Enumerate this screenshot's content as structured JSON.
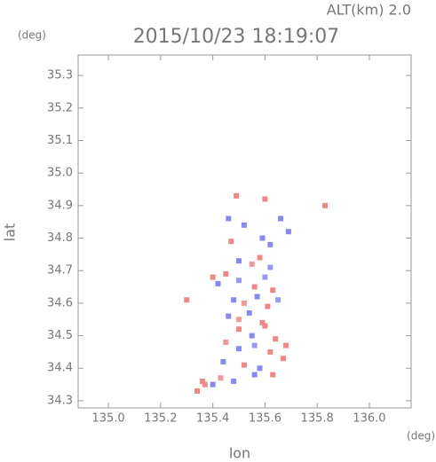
{
  "chart_data": {
    "type": "scatter",
    "title": "2015/10/23 18:19:07",
    "altitude_label": "ALT(km) 2.0",
    "y_unit": "(deg)",
    "x_unit": "(deg)",
    "xlabel": "lon",
    "ylabel": "lat",
    "xlim": [
      134.884,
      136.16
    ],
    "ylim": [
      34.278,
      35.363
    ],
    "xticks": [
      {
        "value": 135.0,
        "label": "135.0"
      },
      135.2,
      135.4,
      135.6,
      135.8,
      {
        "value": 136.0,
        "label": "136.0"
      }
    ],
    "yticks": [
      34.3,
      34.4,
      34.5,
      34.6,
      34.7,
      34.8,
      34.9,
      {
        "value": 35.0,
        "label": "35.0"
      },
      35.1,
      35.2,
      35.3
    ],
    "x": [
      135.49,
      135.6,
      135.83,
      135.46,
      135.52,
      135.66,
      135.69,
      135.59,
      135.62,
      135.47,
      135.5,
      135.55,
      135.58,
      135.62,
      135.45,
      135.4,
      135.42,
      135.5,
      135.56,
      135.6,
      135.63,
      135.48,
      135.52,
      135.57,
      135.61,
      135.65,
      135.46,
      135.5,
      135.54,
      135.59,
      135.5,
      135.55,
      135.6,
      135.64,
      135.68,
      135.45,
      135.5,
      135.56,
      135.62,
      135.67,
      135.44,
      135.52,
      135.58,
      135.63,
      135.36,
      135.4,
      135.43,
      135.48,
      135.34,
      135.56,
      135.3,
      135.37
    ],
    "y": [
      34.93,
      34.92,
      34.9,
      34.86,
      34.84,
      34.86,
      34.82,
      34.8,
      34.78,
      34.79,
      34.73,
      34.72,
      34.74,
      34.71,
      34.69,
      34.68,
      34.66,
      34.67,
      34.65,
      34.68,
      34.64,
      34.61,
      34.6,
      34.62,
      34.59,
      34.61,
      34.56,
      34.55,
      34.57,
      34.54,
      34.52,
      34.5,
      34.53,
      34.49,
      34.47,
      34.48,
      34.46,
      34.47,
      34.45,
      34.43,
      34.42,
      34.41,
      34.4,
      34.38,
      34.36,
      34.35,
      34.37,
      34.36,
      34.33,
      34.38,
      34.61,
      34.35
    ],
    "point_colors": [
      "#e88",
      "#e88",
      "#e88",
      "#88e",
      "#88e",
      "#88e",
      "#88e",
      "#88e",
      "#88e",
      "#e88",
      "#88e",
      "#e99",
      "#e88",
      "#99e",
      "#e88",
      "#e88",
      "#88e",
      "#99e",
      "#e88",
      "#99e",
      "#e88",
      "#88e",
      "#e99",
      "#88e",
      "#e88",
      "#99e",
      "#88e",
      "#e99",
      "#88e",
      "#e88",
      "#e88",
      "#88e",
      "#e88",
      "#e88",
      "#e88",
      "#e99",
      "#88e",
      "#99e",
      "#e88",
      "#e88",
      "#88e",
      "#e88",
      "#88e",
      "#e88",
      "#e88",
      "#88e",
      "#e99",
      "#88e",
      "#e88",
      "#88e",
      "#e88",
      "#e88"
    ]
  }
}
